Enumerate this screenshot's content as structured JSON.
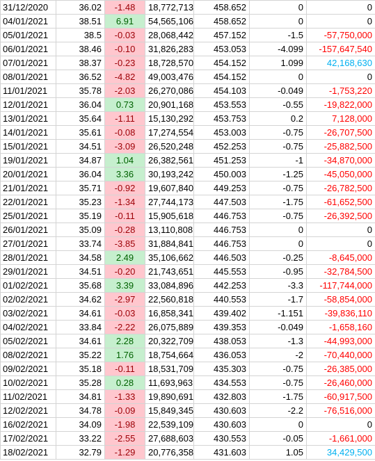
{
  "table": {
    "rows": [
      [
        "31/12/2020",
        "36.02",
        "-1.48",
        "18,772,713",
        "458.652",
        "0",
        "0"
      ],
      [
        "04/01/2021",
        "38.51",
        "6.91",
        "54,565,106",
        "458.652",
        "0",
        "0"
      ],
      [
        "05/01/2021",
        "38.5",
        "-0.03",
        "28,068,442",
        "457.152",
        "-1.5",
        "-57,750,000"
      ],
      [
        "06/01/2021",
        "38.46",
        "-0.10",
        "31,826,283",
        "453.053",
        "-4.099",
        "-157,647,540"
      ],
      [
        "07/01/2021",
        "38.37",
        "-0.23",
        "18,728,570",
        "454.152",
        "1.099",
        "42,168,630"
      ],
      [
        "08/01/2021",
        "36.52",
        "-4.82",
        "49,003,476",
        "454.152",
        "0",
        "0"
      ],
      [
        "11/01/2021",
        "35.78",
        "-2.03",
        "26,270,086",
        "454.103",
        "-0.049",
        "-1,753,220"
      ],
      [
        "12/01/2021",
        "36.04",
        "0.73",
        "20,901,168",
        "453.553",
        "-0.55",
        "-19,822,000"
      ],
      [
        "13/01/2021",
        "35.64",
        "-1.11",
        "15,130,292",
        "453.753",
        "0.2",
        "7,128,000"
      ],
      [
        "14/01/2021",
        "35.61",
        "-0.08",
        "17,274,554",
        "453.003",
        "-0.75",
        "-26,707,500"
      ],
      [
        "15/01/2021",
        "34.51",
        "-3.09",
        "26,520,248",
        "452.253",
        "-0.75",
        "-25,882,500"
      ],
      [
        "19/01/2021",
        "34.87",
        "1.04",
        "26,382,561",
        "451.253",
        "-1",
        "-34,870,000"
      ],
      [
        "20/01/2021",
        "36.04",
        "3.36",
        "30,193,242",
        "450.003",
        "-1.25",
        "-45,050,000"
      ],
      [
        "21/01/2021",
        "35.71",
        "-0.92",
        "19,607,840",
        "449.253",
        "-0.75",
        "-26,782,500"
      ],
      [
        "22/01/2021",
        "35.23",
        "-1.34",
        "27,744,173",
        "447.503",
        "-1.75",
        "-61,652,500"
      ],
      [
        "25/01/2021",
        "35.19",
        "-0.11",
        "15,905,618",
        "446.753",
        "-0.75",
        "-26,392,500"
      ],
      [
        "26/01/2021",
        "35.09",
        "-0.28",
        "13,110,808",
        "446.753",
        "0",
        "0"
      ],
      [
        "27/01/2021",
        "33.74",
        "-3.85",
        "31,884,841",
        "446.753",
        "0",
        "0"
      ],
      [
        "28/01/2021",
        "34.58",
        "2.49",
        "35,106,662",
        "446.503",
        "-0.25",
        "-8,645,000"
      ],
      [
        "29/01/2021",
        "34.51",
        "-0.20",
        "21,743,651",
        "445.553",
        "-0.95",
        "-32,784,500"
      ],
      [
        "01/02/2021",
        "35.68",
        "3.39",
        "33,084,896",
        "442.253",
        "-3.3",
        "-117,744,000"
      ],
      [
        "02/02/2021",
        "34.62",
        "-2.97",
        "22,560,818",
        "440.553",
        "-1.7",
        "-58,854,000"
      ],
      [
        "03/02/2021",
        "34.61",
        "-0.03",
        "16,858,341",
        "439.402",
        "-1.151",
        "-39,836,110"
      ],
      [
        "04/02/2021",
        "33.84",
        "-2.22",
        "26,075,889",
        "439.353",
        "-0.049",
        "-1,658,160"
      ],
      [
        "05/02/2021",
        "34.61",
        "2.28",
        "20,322,709",
        "438.053",
        "-1.3",
        "-44,993,000"
      ],
      [
        "08/02/2021",
        "35.22",
        "1.76",
        "18,754,664",
        "436.053",
        "-2",
        "-70,440,000"
      ],
      [
        "09/02/2021",
        "35.18",
        "-0.11",
        "18,531,709",
        "435.303",
        "-0.75",
        "-26,385,000"
      ],
      [
        "10/02/2021",
        "35.28",
        "0.28",
        "11,693,963",
        "434.553",
        "-0.75",
        "-26,460,000"
      ],
      [
        "11/02/2021",
        "34.81",
        "-1.33",
        "19,890,691",
        "432.803",
        "-1.75",
        "-60,917,500"
      ],
      [
        "12/02/2021",
        "34.78",
        "-0.09",
        "15,849,345",
        "430.603",
        "-2.2",
        "-76,516,000"
      ],
      [
        "16/02/2021",
        "34.09",
        "-1.98",
        "22,539,109",
        "430.603",
        "0",
        "0"
      ],
      [
        "17/02/2021",
        "33.22",
        "-2.55",
        "27,688,603",
        "430.553",
        "-0.05",
        "-1,661,000"
      ],
      [
        "18/02/2021",
        "32.79",
        "-1.29",
        "20,776,358",
        "431.603",
        "1.05",
        "34,429,500"
      ]
    ],
    "change_tone": [
      "red",
      "green",
      "red",
      "red",
      "red",
      "red",
      "red",
      "green",
      "red",
      "red",
      "red",
      "green",
      "green",
      "red",
      "red",
      "red",
      "red",
      "red",
      "green",
      "red",
      "green",
      "red",
      "red",
      "red",
      "green",
      "green",
      "red",
      "green",
      "red",
      "red",
      "red",
      "red",
      "red"
    ],
    "last_color": [
      "#000000",
      "#000000",
      "#ff0000",
      "#ff0000",
      "#00b0f0",
      "#000000",
      "#ff0000",
      "#ff0000",
      "#ff0000",
      "#ff0000",
      "#ff0000",
      "#ff0000",
      "#ff0000",
      "#ff0000",
      "#ff0000",
      "#ff0000",
      "#000000",
      "#000000",
      "#ff0000",
      "#ff0000",
      "#ff0000",
      "#ff0000",
      "#ff0000",
      "#ff0000",
      "#ff0000",
      "#ff0000",
      "#ff0000",
      "#ff0000",
      "#ff0000",
      "#ff0000",
      "#000000",
      "#ff0000",
      "#00b0f0"
    ],
    "tones": {
      "red": {
        "bg": "#ffc7ce",
        "fg": "#9c0006"
      },
      "green": {
        "bg": "#c6efce",
        "fg": "#006100"
      }
    }
  }
}
